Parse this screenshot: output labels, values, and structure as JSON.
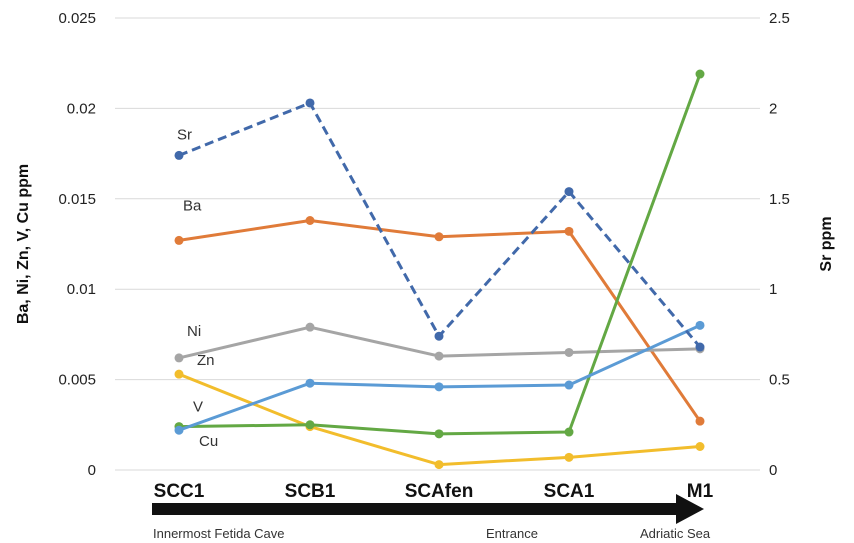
{
  "chart_data": {
    "type": "line",
    "categories": [
      "SCC1",
      "SCB1",
      "SCAfen",
      "SCA1",
      "M1"
    ],
    "y_left": {
      "label": "Ba, Ni, Zn, V, Cu ppm",
      "range": [
        0,
        0.025
      ],
      "ticks": [
        "0",
        "0.005",
        "0.01",
        "0.015",
        "0.02",
        "0.025"
      ]
    },
    "y_right": {
      "label": "Sr ppm",
      "range": [
        0,
        2.5
      ],
      "ticks": [
        "0",
        "0.5",
        "1",
        "1.5",
        "2",
        "2.5"
      ]
    },
    "grid": true,
    "legend": "inline labels at left",
    "series": [
      {
        "name": "Sr",
        "axis": "right",
        "style": "dashed",
        "color": "#4169AA",
        "values": [
          1.74,
          2.03,
          0.74,
          1.54,
          0.68
        ]
      },
      {
        "name": "Ba",
        "axis": "left",
        "style": "solid",
        "color": "#E07B39",
        "values": [
          0.0127,
          0.0138,
          0.0129,
          0.0132,
          0.0027
        ]
      },
      {
        "name": "Ni",
        "axis": "left",
        "style": "solid",
        "color": "#A5A5A5",
        "values": [
          0.0062,
          0.0079,
          0.0063,
          0.0065,
          0.0067
        ]
      },
      {
        "name": "Zn",
        "axis": "left",
        "style": "solid",
        "color": "#F2BD2C",
        "values": [
          0.0053,
          0.0024,
          0.0003,
          0.0007,
          0.0013
        ]
      },
      {
        "name": "V",
        "axis": "left",
        "style": "solid",
        "color": "#63A844",
        "values": [
          0.0024,
          0.0025,
          0.002,
          0.0021,
          0.0219
        ]
      },
      {
        "name": "Cu",
        "axis": "left",
        "style": "solid",
        "color": "#5B9BD5",
        "values": [
          0.0022,
          0.0048,
          0.0046,
          0.0047,
          0.008
        ]
      }
    ],
    "annotations": {
      "arrow_labels": [
        "Innermost Fetida Cave",
        "Entrance",
        "Adriatic Sea"
      ]
    }
  }
}
